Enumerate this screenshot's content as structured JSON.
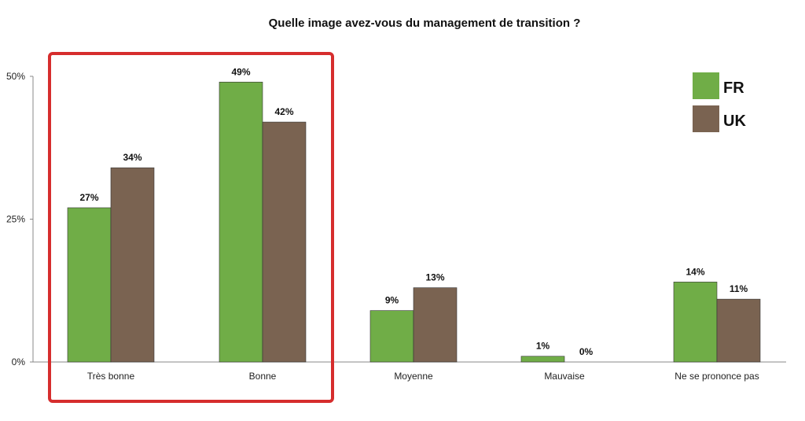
{
  "chart_data": {
    "type": "bar",
    "title": "Quelle image avez-vous du management de transition ?",
    "categories": [
      "Très bonne",
      "Bonne",
      "Moyenne",
      "Mauvaise",
      "Ne se prononce pas"
    ],
    "series": [
      {
        "name": "FR",
        "values": [
          27,
          49,
          9,
          1,
          14
        ],
        "labels": [
          "27%",
          "49%",
          "9%",
          "1%",
          "14%"
        ]
      },
      {
        "name": "UK",
        "values": [
          34,
          42,
          13,
          0,
          11
        ],
        "labels": [
          "34%",
          "42%",
          "13%",
          "0%",
          "11%"
        ]
      }
    ],
    "yticks": [
      "0%",
      "25%",
      "50%"
    ],
    "ylim": [
      0,
      50
    ],
    "legend_position": "top-right",
    "highlight_categories": [
      "Très bonne",
      "Bonne"
    ],
    "colors": {
      "FR": "#70ad47",
      "UK": "#7a6351",
      "highlight": "#d62d2d",
      "axis": "#888888"
    }
  }
}
